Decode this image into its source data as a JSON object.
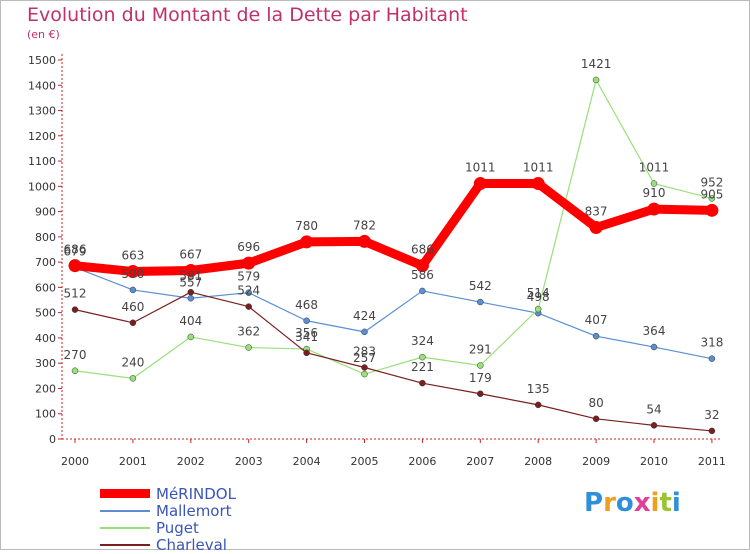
{
  "title": "Evolution du Montant de la Dette par Habitant",
  "unit_label": "(en €)",
  "logo_text": "Proxiti",
  "chart_data": {
    "type": "line",
    "title": "Evolution du Montant de la Dette par Habitant",
    "subtitle": "(en €)",
    "xlabel": "",
    "ylabel": "",
    "x": [
      "2000",
      "2001",
      "2002",
      "2003",
      "2004",
      "2005",
      "2006",
      "2007",
      "2008",
      "2009",
      "2010",
      "2011"
    ],
    "ylim": [
      0,
      1500
    ],
    "yticks": [
      0,
      100,
      200,
      300,
      400,
      500,
      600,
      700,
      800,
      900,
      1000,
      1100,
      1200,
      1300,
      1400,
      1500
    ],
    "grid": false,
    "legend": "bottom-left",
    "series": [
      {
        "name": "MéRINDOL",
        "color": "#ff0000",
        "values": [
          686,
          663,
          667,
          696,
          780,
          782,
          686,
          1011,
          1011,
          837,
          910,
          905
        ]
      },
      {
        "name": "Mallemort",
        "color": "#5b8fd0",
        "values": [
          679,
          590,
          557,
          579,
          468,
          424,
          586,
          542,
          498,
          407,
          364,
          318
        ]
      },
      {
        "name": "Puget",
        "color": "#99e07a",
        "values": [
          270,
          240,
          404,
          362,
          356,
          257,
          324,
          291,
          514,
          1421,
          1011,
          952
        ]
      },
      {
        "name": "Charleval",
        "color": "#7a1f1f",
        "values": [
          512,
          460,
          581,
          524,
          341,
          283,
          221,
          179,
          135,
          80,
          54,
          32
        ]
      }
    ]
  }
}
